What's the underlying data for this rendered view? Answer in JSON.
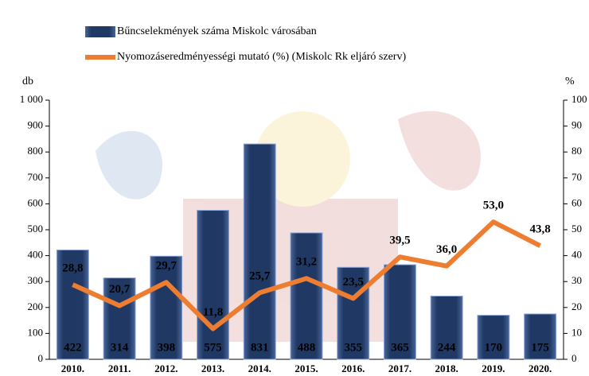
{
  "chart_data": {
    "type": "bar",
    "categories": [
      "2010.",
      "2011.",
      "2012.",
      "2013.",
      "2014.",
      "2015.",
      "2016.",
      "2017.",
      "2018.",
      "2019.",
      "2020."
    ],
    "series": [
      {
        "name": "Bűncselekmények száma Miskolc városában",
        "color": "#1f3864",
        "values": [
          422,
          314,
          398,
          575,
          831,
          488,
          355,
          365,
          244,
          170,
          175
        ]
      },
      {
        "name": "Nyomozáseredményességi mutató (%) (Miskolc Rk eljáró szerv)",
        "color": "#ed7d31",
        "type": "line",
        "axis": "y2",
        "values": [
          28.8,
          20.7,
          29.7,
          11.8,
          25.7,
          31.2,
          23.5,
          39.5,
          36.0,
          53.0,
          43.8
        ],
        "value_labels": [
          "28,8",
          "20,7",
          "29,7",
          "11,8",
          "25,7",
          "31,2",
          "23,5",
          "39,5",
          "36,0",
          "53,0",
          "43,8"
        ]
      }
    ],
    "ylabel": "db",
    "y2label": "%",
    "ylim": [
      0,
      1000
    ],
    "yticks": [
      0,
      100,
      200,
      300,
      400,
      500,
      600,
      700,
      800,
      900,
      {
        "value": 1000,
        "label": "1 000"
      }
    ],
    "y2lim": [
      0,
      100
    ],
    "y2ticks": [
      0,
      10,
      20,
      30,
      40,
      50,
      60,
      70,
      80,
      90,
      100
    ]
  }
}
